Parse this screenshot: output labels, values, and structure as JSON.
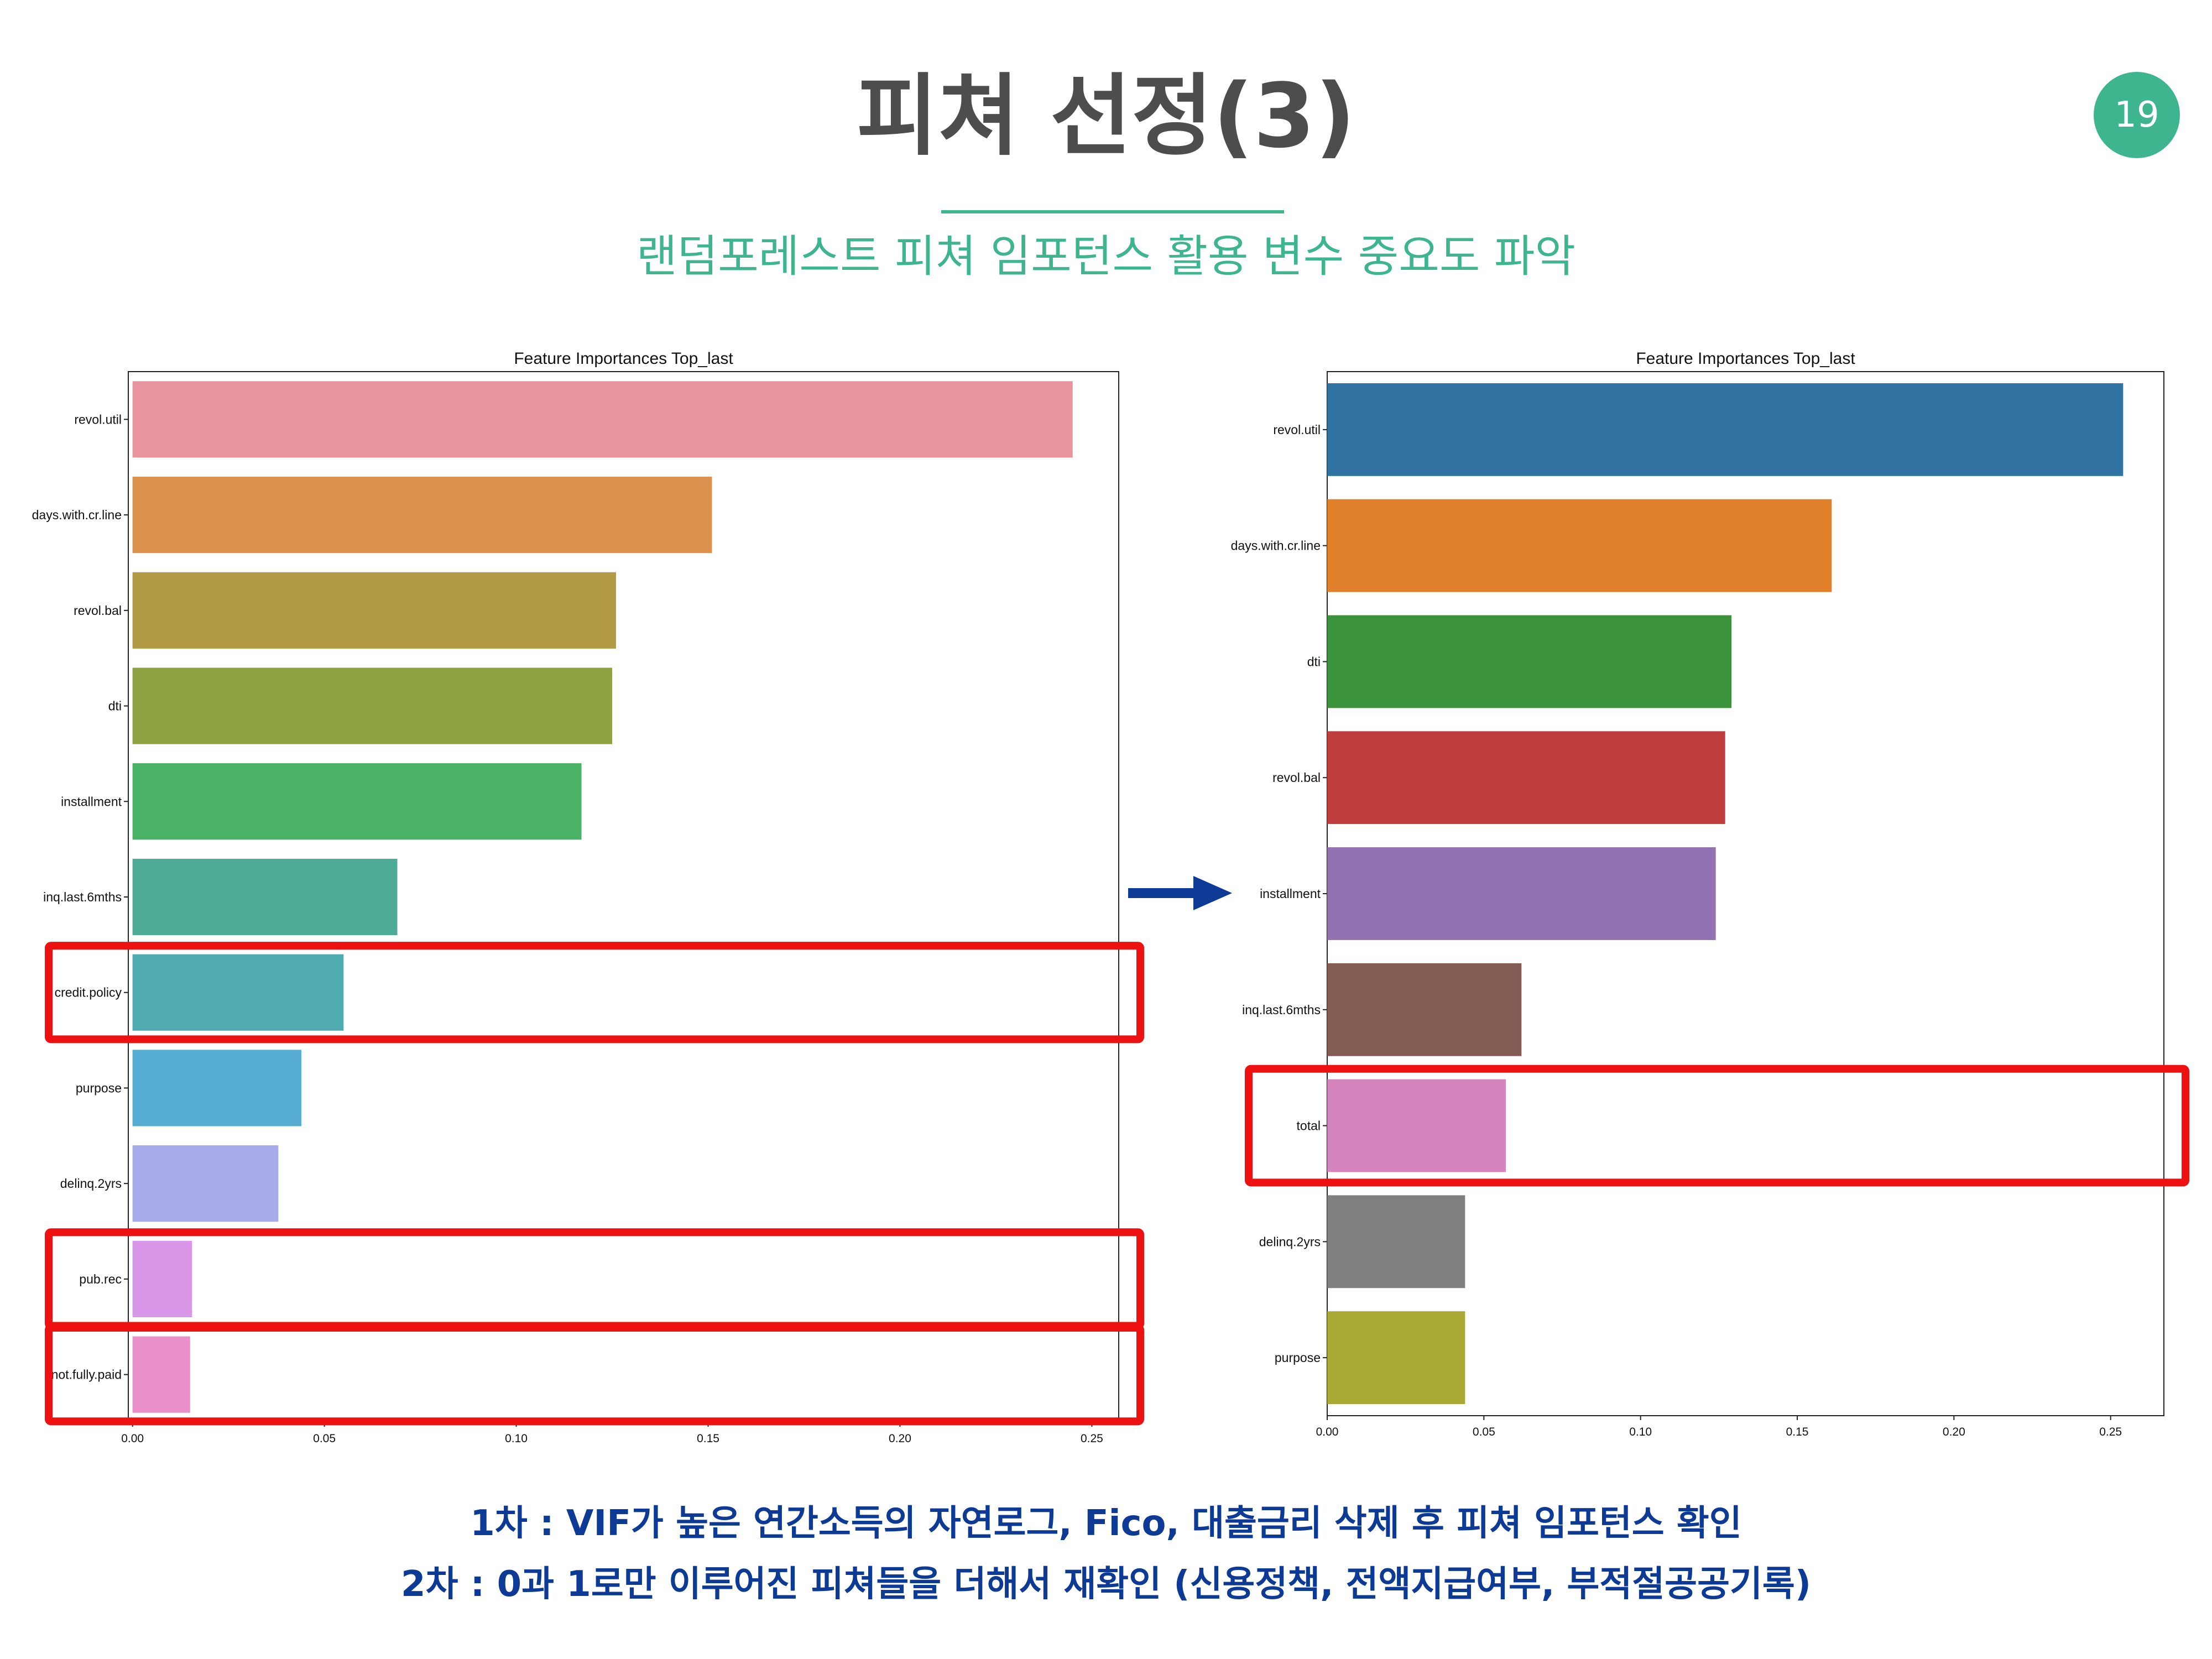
{
  "slide": {
    "title": "피쳐 선정(3)",
    "subtitle": "랜덤포레스트 피쳐 임포턴스 활용 변수 중요도 파악",
    "page_number": "19",
    "accent_color": "#3fb58f",
    "highlight_color": "#ee1111",
    "note_color": "#0d3a94"
  },
  "notes": {
    "first": "1차 : VIF가 높은 연간소득의 자연로그, Fico, 대출금리 삭제 후 피쳐 임포턴스 확인",
    "second": "2차 : 0과 1로만 이루어진 피쳐들을 더해서 재확인 (신용정책, 전액지급여부, 부적절공공기록)"
  },
  "arrow": {
    "icon": "right-arrow-icon",
    "color": "#0d3a94"
  },
  "chart_data": [
    {
      "type": "bar",
      "orientation": "horizontal",
      "title": "Feature Importances Top_last",
      "categories": [
        "revol.util",
        "days.with.cr.line",
        "revol.bal",
        "dti",
        "installment",
        "inq.last.6mths",
        "credit.policy",
        "purpose",
        "delinq.2yrs",
        "pub.rec",
        "not.fully.paid"
      ],
      "values": [
        0.245,
        0.151,
        0.126,
        0.125,
        0.117,
        0.069,
        0.055,
        0.044,
        0.038,
        0.0155,
        0.015
      ],
      "colors": [
        "#e8949f",
        "#dc914c",
        "#b39b45",
        "#90a343",
        "#49b264",
        "#4caa95",
        "#4fabb1",
        "#57aed4",
        "#a8abe9",
        "#d897e8",
        "#e98fca"
      ],
      "xticks": [
        "0.00",
        "0.05",
        "0.10",
        "0.15",
        "0.20",
        "0.25"
      ],
      "xlim": [
        -0.0011,
        0.257
      ],
      "highlighted": [
        "credit.policy",
        "pub.rec",
        "not.fully.paid"
      ]
    },
    {
      "type": "bar",
      "orientation": "horizontal",
      "title": "Feature Importances Top_last",
      "categories": [
        "revol.util",
        "days.with.cr.line",
        "dti",
        "revol.bal",
        "installment",
        "inq.last.6mths",
        "total",
        "delinq.2yrs",
        "purpose"
      ],
      "values": [
        0.254,
        0.161,
        0.129,
        0.127,
        0.124,
        0.062,
        0.057,
        0.044,
        0.044
      ],
      "colors": [
        "#3274a1",
        "#e1812c",
        "#3a923a",
        "#c03d3e",
        "#9372b2",
        "#845b53",
        "#d684bd",
        "#7f7f7f",
        "#a9aa35"
      ],
      "xticks": [
        "0.00",
        "0.05",
        "0.10",
        "0.15",
        "0.20",
        "0.25"
      ],
      "xlim": [
        0.0,
        0.267
      ],
      "highlighted": [
        "total"
      ]
    }
  ]
}
